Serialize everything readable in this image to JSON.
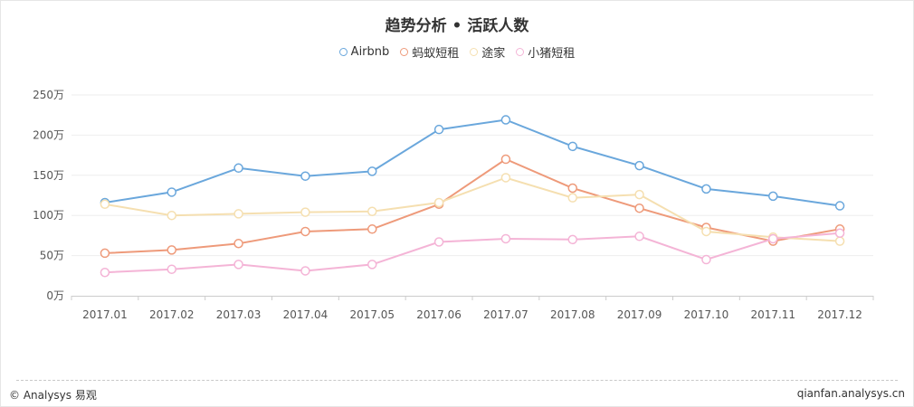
{
  "footer": {
    "left_text": "© Analysys 易观",
    "right_text": "qianfan.analysys.cn"
  },
  "chart_data": {
    "type": "line",
    "title": "趋势分析 • 活跃人数",
    "categories": [
      "2017.01",
      "2017.02",
      "2017.03",
      "2017.04",
      "2017.05",
      "2017.06",
      "2017.07",
      "2017.08",
      "2017.09",
      "2017.10",
      "2017.11",
      "2017.12"
    ],
    "y_ticks": [
      "0万",
      "50万",
      "100万",
      "150万",
      "200万",
      "250万"
    ],
    "ylim": [
      0,
      250
    ],
    "grid": true,
    "legend_position": "top-center",
    "series": [
      {
        "name": "Airbnb",
        "color": "#6aa7dc",
        "values": [
          116,
          129,
          159,
          149,
          155,
          207,
          219,
          186,
          162,
          133,
          124,
          112
        ]
      },
      {
        "name": "蚂蚁短租",
        "color": "#ee9a7a",
        "values": [
          53,
          57,
          65,
          80,
          83,
          114,
          170,
          134,
          109,
          85,
          68,
          83
        ]
      },
      {
        "name": "途家",
        "color": "#f5dfb0",
        "values": [
          114,
          100,
          102,
          104,
          105,
          116,
          147,
          122,
          126,
          80,
          73,
          68
        ]
      },
      {
        "name": "小猪短租",
        "color": "#f4b4d6",
        "values": [
          29,
          33,
          39,
          31,
          39,
          67,
          71,
          70,
          74,
          45,
          71,
          78
        ]
      }
    ]
  }
}
